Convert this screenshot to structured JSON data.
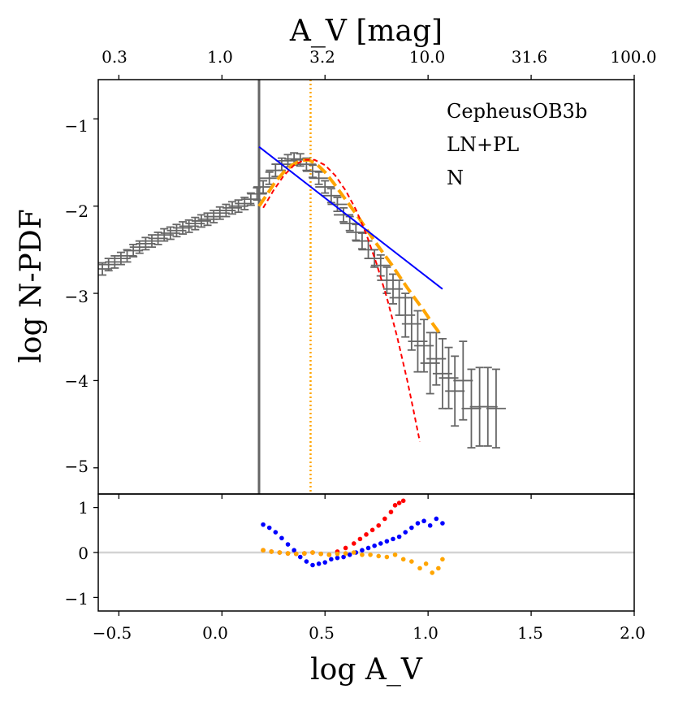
{
  "chart_data": [
    {
      "panel": "main",
      "type": "line",
      "title": "",
      "xlabel": "log A_V",
      "ylabel": "log N-PDF",
      "top_xlabel": "A_V [mag]",
      "xlim": [
        -0.6,
        2.0
      ],
      "ylim": [
        -5.3,
        -0.55
      ],
      "x_ticks": [
        "−0.5",
        "0.0",
        "0.5",
        "1.0",
        "1.5",
        "2.0"
      ],
      "x_tick_values": [
        -0.5,
        0.0,
        0.5,
        1.0,
        1.5,
        2.0
      ],
      "top_x_ticks": [
        "0.3",
        "1.0",
        "3.2",
        "10.0",
        "31.6",
        "100.0"
      ],
      "top_x_tick_values": [
        -0.5,
        0.0,
        0.5,
        1.0,
        1.5,
        2.0
      ],
      "y_ticks": [
        "−1",
        "−2",
        "−3",
        "−4",
        "−5"
      ],
      "y_tick_values": [
        -1,
        -2,
        -3,
        -4,
        -5
      ],
      "annotations": [
        "CepheusOB3b",
        "LN+PL",
        "N"
      ],
      "vlines": [
        {
          "name": "completeness limit",
          "x": 0.18,
          "color": "#666666",
          "style": "solid"
        },
        {
          "name": "peak",
          "x": 0.43,
          "color": "#ffa500",
          "style": "dotted"
        }
      ],
      "series": [
        {
          "name": "data (with error bars)",
          "color": "#666666",
          "x": [
            -0.58,
            -0.55,
            -0.52,
            -0.49,
            -0.46,
            -0.43,
            -0.4,
            -0.37,
            -0.34,
            -0.31,
            -0.28,
            -0.25,
            -0.22,
            -0.19,
            -0.16,
            -0.13,
            -0.1,
            -0.07,
            -0.04,
            -0.01,
            0.02,
            0.05,
            0.08,
            0.11,
            0.14,
            0.17,
            0.2,
            0.23,
            0.26,
            0.29,
            0.32,
            0.35,
            0.38,
            0.41,
            0.44,
            0.47,
            0.5,
            0.53,
            0.56,
            0.59,
            0.62,
            0.65,
            0.68,
            0.71,
            0.74,
            0.77,
            0.8,
            0.83,
            0.86,
            0.89,
            0.92,
            0.95,
            0.98,
            1.01,
            1.04,
            1.07,
            1.1,
            1.13,
            1.17,
            1.21,
            1.25,
            1.29,
            1.33
          ],
          "y": [
            -2.72,
            -2.67,
            -2.64,
            -2.6,
            -2.57,
            -2.51,
            -2.47,
            -2.43,
            -2.4,
            -2.37,
            -2.33,
            -2.31,
            -2.28,
            -2.25,
            -2.23,
            -2.2,
            -2.17,
            -2.15,
            -2.12,
            -2.08,
            -2.05,
            -2.02,
            -2.0,
            -1.97,
            -1.92,
            -1.86,
            -1.78,
            -1.68,
            -1.59,
            -1.52,
            -1.48,
            -1.46,
            -1.47,
            -1.52,
            -1.6,
            -1.68,
            -1.78,
            -1.88,
            -1.98,
            -2.1,
            -2.2,
            -2.3,
            -2.4,
            -2.5,
            -2.6,
            -2.68,
            -2.85,
            -2.95,
            -3.05,
            -3.25,
            -3.35,
            -3.55,
            -3.6,
            -3.8,
            -3.75,
            -3.92,
            -3.97,
            -4.12,
            -4.0,
            -4.32,
            -4.3,
            -4.3,
            -4.32
          ],
          "err": [
            0.07,
            0.07,
            0.07,
            0.07,
            0.07,
            0.07,
            0.07,
            0.07,
            0.07,
            0.07,
            0.07,
            0.07,
            0.07,
            0.07,
            0.07,
            0.07,
            0.07,
            0.07,
            0.07,
            0.07,
            0.07,
            0.07,
            0.07,
            0.07,
            0.07,
            0.07,
            0.07,
            0.07,
            0.07,
            0.07,
            0.07,
            0.07,
            0.07,
            0.07,
            0.07,
            0.07,
            0.07,
            0.08,
            0.08,
            0.08,
            0.08,
            0.09,
            0.09,
            0.1,
            0.1,
            0.12,
            0.15,
            0.17,
            0.2,
            0.25,
            0.3,
            0.35,
            0.3,
            0.35,
            0.3,
            0.4,
            0.35,
            0.4,
            0.45,
            0.45,
            0.45,
            0.45,
            0.45
          ]
        },
        {
          "name": "LN+PL fit",
          "color": "#ffa500",
          "style": "dashed",
          "x": [
            0.18,
            0.22,
            0.26,
            0.3,
            0.34,
            0.38,
            0.42,
            0.46,
            0.5,
            0.54,
            0.58,
            0.62,
            0.66,
            0.7,
            0.74,
            0.78,
            0.82,
            0.86,
            0.9,
            0.94,
            0.98,
            1.02,
            1.06
          ],
          "y": [
            -2.0,
            -1.86,
            -1.72,
            -1.61,
            -1.53,
            -1.48,
            -1.47,
            -1.52,
            -1.61,
            -1.73,
            -1.86,
            -1.99,
            -2.12,
            -2.26,
            -2.4,
            -2.53,
            -2.66,
            -2.8,
            -2.94,
            -3.07,
            -3.2,
            -3.34,
            -3.47
          ]
        },
        {
          "name": "lognormal",
          "color": "#ff0000",
          "style": "dashed",
          "x": [
            0.2,
            0.25,
            0.3,
            0.35,
            0.4,
            0.45,
            0.5,
            0.55,
            0.6,
            0.65,
            0.7,
            0.75,
            0.8,
            0.85,
            0.9,
            0.93,
            0.96
          ],
          "y": [
            -2.02,
            -1.82,
            -1.65,
            -1.53,
            -1.47,
            -1.47,
            -1.53,
            -1.65,
            -1.82,
            -2.04,
            -2.32,
            -2.66,
            -3.05,
            -3.5,
            -4.01,
            -4.35,
            -4.7
          ]
        },
        {
          "name": "power law",
          "color": "#0000ff",
          "style": "solid",
          "x": [
            0.18,
            1.07
          ],
          "y": [
            -1.32,
            -2.95
          ]
        }
      ]
    },
    {
      "panel": "residuals",
      "type": "scatter",
      "xlabel": "log A_V",
      "ylabel": "",
      "xlim": [
        -0.6,
        2.0
      ],
      "ylim": [
        -1.3,
        1.3
      ],
      "y_ticks": [
        "1",
        "0",
        "−1"
      ],
      "y_tick_values": [
        1,
        0,
        -1
      ],
      "hline": {
        "y": 0,
        "color": "#d3d3d3"
      },
      "series": [
        {
          "name": "residual LN",
          "color": "#ff0000",
          "x": [
            0.2,
            0.24,
            0.28,
            0.32,
            0.36,
            0.4,
            0.44,
            0.48,
            0.52,
            0.56,
            0.6,
            0.64,
            0.67,
            0.7,
            0.73,
            0.76,
            0.79,
            0.82,
            0.84,
            0.86,
            0.88
          ],
          "y": [
            0.05,
            0.02,
            0.0,
            -0.02,
            -0.03,
            -0.02,
            0.0,
            -0.03,
            -0.05,
            0.02,
            0.1,
            0.2,
            0.3,
            0.4,
            0.5,
            0.6,
            0.75,
            0.9,
            1.05,
            1.1,
            1.15
          ]
        },
        {
          "name": "residual PL",
          "color": "#0000ff",
          "x": [
            0.2,
            0.23,
            0.26,
            0.29,
            0.32,
            0.35,
            0.38,
            0.41,
            0.44,
            0.47,
            0.5,
            0.53,
            0.56,
            0.59,
            0.62,
            0.65,
            0.68,
            0.71,
            0.74,
            0.77,
            0.8,
            0.83,
            0.86,
            0.89,
            0.92,
            0.95,
            0.98,
            1.01,
            1.04,
            1.07
          ],
          "y": [
            0.62,
            0.55,
            0.45,
            0.32,
            0.18,
            0.05,
            -0.1,
            -0.2,
            -0.28,
            -0.25,
            -0.22,
            -0.15,
            -0.12,
            -0.1,
            -0.05,
            0.0,
            0.05,
            0.1,
            0.15,
            0.2,
            0.25,
            0.3,
            0.35,
            0.45,
            0.55,
            0.65,
            0.7,
            0.6,
            0.75,
            0.65
          ]
        },
        {
          "name": "residual LN+PL",
          "color": "#ffa500",
          "x": [
            0.2,
            0.24,
            0.28,
            0.32,
            0.36,
            0.4,
            0.44,
            0.48,
            0.52,
            0.56,
            0.6,
            0.64,
            0.68,
            0.72,
            0.76,
            0.8,
            0.84,
            0.88,
            0.92,
            0.96,
            0.99,
            1.02,
            1.05,
            1.07
          ],
          "y": [
            0.05,
            0.02,
            0.0,
            -0.02,
            -0.03,
            -0.02,
            0.0,
            -0.03,
            -0.05,
            -0.03,
            -0.02,
            0.0,
            -0.05,
            -0.05,
            -0.08,
            -0.1,
            -0.05,
            -0.15,
            -0.2,
            -0.35,
            -0.25,
            -0.45,
            -0.35,
            -0.15
          ]
        }
      ]
    }
  ]
}
